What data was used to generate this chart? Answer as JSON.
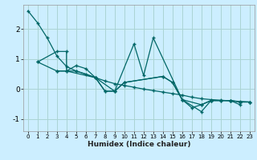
{
  "title": "",
  "xlabel": "Humidex (Indice chaleur)",
  "bg_color": "#cceeff",
  "grid_color": "#aad4d4",
  "line_color": "#006666",
  "xlim": [
    -0.5,
    23.5
  ],
  "ylim": [
    -1.4,
    2.8
  ],
  "yticks": [
    -1,
    0,
    1,
    2
  ],
  "xticks": [
    0,
    1,
    2,
    3,
    4,
    5,
    6,
    7,
    8,
    9,
    10,
    11,
    12,
    13,
    14,
    15,
    16,
    17,
    18,
    19,
    20,
    21,
    22,
    23
  ],
  "series_lines": [
    {
      "x": [
        0,
        1,
        2,
        3,
        4,
        5,
        6,
        7,
        8,
        9,
        10,
        11,
        12,
        13,
        14,
        15,
        16,
        17,
        18,
        19,
        20,
        21,
        22,
        23
      ],
      "y": [
        2.6,
        2.2,
        1.7,
        1.1,
        0.75,
        0.6,
        0.5,
        0.38,
        0.27,
        0.18,
        0.12,
        0.06,
        0.0,
        -0.05,
        -0.1,
        -0.15,
        -0.2,
        -0.27,
        -0.32,
        -0.35,
        -0.37,
        -0.39,
        -0.41,
        -0.43
      ]
    },
    {
      "x": [
        1,
        3,
        4,
        4,
        7,
        8,
        9,
        11,
        12,
        13,
        16,
        17,
        18,
        19,
        21,
        22
      ],
      "y": [
        0.9,
        1.25,
        1.25,
        0.6,
        0.38,
        -0.07,
        -0.07,
        1.5,
        0.45,
        1.7,
        -0.35,
        -0.62,
        -0.52,
        -0.38,
        -0.38,
        -0.52
      ]
    },
    {
      "x": [
        3,
        4,
        5,
        6,
        7,
        8,
        9,
        10,
        14,
        15,
        16,
        18,
        19,
        20,
        21,
        22,
        23
      ],
      "y": [
        0.6,
        0.6,
        0.78,
        0.68,
        0.38,
        -0.07,
        -0.07,
        0.22,
        0.42,
        0.22,
        -0.35,
        -0.75,
        -0.38,
        -0.38,
        -0.38,
        -0.43,
        -0.43
      ]
    },
    {
      "x": [
        1,
        3,
        5,
        7,
        9,
        10,
        14,
        15,
        16,
        18,
        19,
        20,
        21,
        22,
        23
      ],
      "y": [
        0.9,
        0.6,
        0.6,
        0.38,
        -0.07,
        0.22,
        0.42,
        0.22,
        -0.35,
        -0.52,
        -0.38,
        -0.38,
        -0.38,
        -0.43,
        -0.43
      ]
    }
  ]
}
